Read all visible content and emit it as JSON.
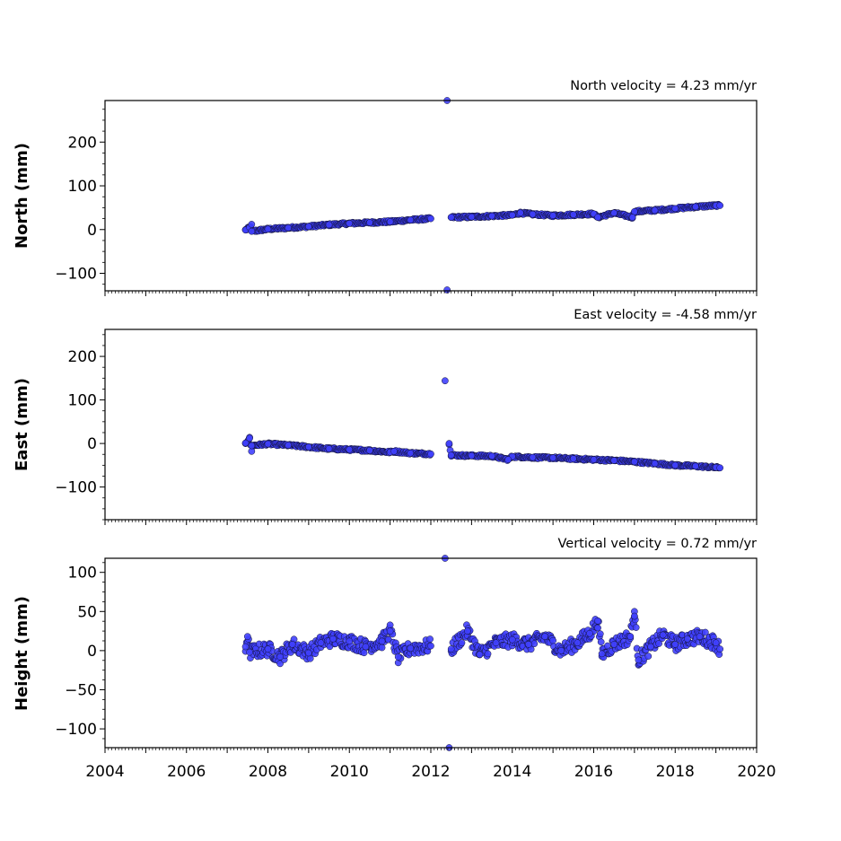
{
  "chart_data": [
    {
      "type": "scatter",
      "title": "North velocity = 4.23 mm/yr",
      "ylabel": "North (mm)",
      "xlim": [
        2004,
        2020
      ],
      "ylim": [
        -140,
        295
      ],
      "yticks": [
        -100,
        0,
        100,
        200
      ],
      "series": [
        {
          "color": "#4040ff",
          "points": [
            [
              2007.45,
              -1
            ],
            [
              2007.55,
              5
            ],
            [
              2007.6,
              12
            ],
            [
              2007.6,
              -4
            ],
            [
              2008.0,
              1
            ],
            [
              2008.5,
              4
            ],
            [
              2009.0,
              7
            ],
            [
              2009.5,
              11
            ],
            [
              2010.0,
              14
            ],
            [
              2010.5,
              16
            ],
            [
              2011.0,
              18
            ],
            [
              2011.5,
              22
            ],
            [
              2012.0,
              25
            ],
            [
              2012.5,
              28
            ],
            [
              2013.0,
              29
            ],
            [
              2013.5,
              31
            ],
            [
              2014.0,
              33
            ],
            [
              2014.5,
              35
            ],
            [
              2015.0,
              32
            ],
            [
              2015.5,
              34
            ],
            [
              2016.0,
              36
            ],
            [
              2016.5,
              38
            ],
            [
              2017.0,
              41
            ],
            [
              2017.5,
              44
            ],
            [
              2018.0,
              48
            ],
            [
              2018.5,
              52
            ],
            [
              2019.0,
              55
            ],
            [
              2019.1,
              55
            ],
            [
              2012.4,
              295
            ],
            [
              2012.4,
              -138
            ],
            [
              2016.1,
              28
            ],
            [
              2016.95,
              28
            ],
            [
              2014.2,
              38
            ]
          ]
        }
      ]
    },
    {
      "type": "scatter",
      "title": "East velocity = -4.58 mm/yr",
      "ylabel": "East (mm)",
      "xlim": [
        2004,
        2020
      ],
      "ylim": [
        -175,
        262
      ],
      "yticks": [
        -100,
        0,
        100,
        200
      ],
      "series": [
        {
          "color": "#4040ff",
          "points": [
            [
              2007.45,
              1
            ],
            [
              2007.55,
              12
            ],
            [
              2007.6,
              -18
            ],
            [
              2007.6,
              -5
            ],
            [
              2008.0,
              -1
            ],
            [
              2008.5,
              -4
            ],
            [
              2009.0,
              -8
            ],
            [
              2009.5,
              -12
            ],
            [
              2010.0,
              -14
            ],
            [
              2010.5,
              -16
            ],
            [
              2011.0,
              -20
            ],
            [
              2011.5,
              -22
            ],
            [
              2012.0,
              -24
            ],
            [
              2012.5,
              -27
            ],
            [
              2013.0,
              -28
            ],
            [
              2013.5,
              -29
            ],
            [
              2014.0,
              -30
            ],
            [
              2014.5,
              -32
            ],
            [
              2015.0,
              -33
            ],
            [
              2015.5,
              -35
            ],
            [
              2016.0,
              -37
            ],
            [
              2016.5,
              -39
            ],
            [
              2017.0,
              -42
            ],
            [
              2017.5,
              -46
            ],
            [
              2018.0,
              -50
            ],
            [
              2018.5,
              -52
            ],
            [
              2019.0,
              -55
            ],
            [
              2019.1,
              -56
            ],
            [
              2012.35,
              144
            ],
            [
              2012.45,
              0
            ],
            [
              2013.9,
              -37
            ],
            [
              2011.1,
              -18
            ]
          ]
        }
      ]
    },
    {
      "type": "scatter",
      "title": "Vertical velocity = 0.72 mm/yr",
      "ylabel": "Height (mm)",
      "xlim": [
        2004,
        2020
      ],
      "ylim": [
        -124,
        118
      ],
      "yticks": [
        -100,
        -50,
        0,
        50,
        100
      ],
      "xticks": [
        2004,
        2006,
        2008,
        2010,
        2012,
        2014,
        2016,
        2018,
        2020
      ],
      "series": [
        {
          "color": "#4040ff",
          "points": [
            [
              2007.45,
              5
            ],
            [
              2007.5,
              18
            ],
            [
              2007.55,
              -2
            ],
            [
              2008.0,
              2
            ],
            [
              2008.3,
              -8
            ],
            [
              2008.6,
              8
            ],
            [
              2009.0,
              -3
            ],
            [
              2009.3,
              10
            ],
            [
              2009.6,
              15
            ],
            [
              2010.0,
              12
            ],
            [
              2010.4,
              5
            ],
            [
              2010.8,
              12
            ],
            [
              2011.0,
              25
            ],
            [
              2011.2,
              -8
            ],
            [
              2011.5,
              3
            ],
            [
              2012.0,
              6
            ],
            [
              2012.5,
              2
            ],
            [
              2012.9,
              25
            ],
            [
              2013.2,
              -5
            ],
            [
              2013.6,
              10
            ],
            [
              2014.0,
              14
            ],
            [
              2014.4,
              8
            ],
            [
              2014.8,
              18
            ],
            [
              2015.2,
              0
            ],
            [
              2015.6,
              10
            ],
            [
              2015.9,
              22
            ],
            [
              2016.1,
              38
            ],
            [
              2016.2,
              -4
            ],
            [
              2016.5,
              8
            ],
            [
              2016.9,
              18
            ],
            [
              2017.0,
              50
            ],
            [
              2017.0,
              44
            ],
            [
              2017.1,
              -12
            ],
            [
              2017.4,
              5
            ],
            [
              2017.7,
              20
            ],
            [
              2018.0,
              8
            ],
            [
              2018.3,
              15
            ],
            [
              2018.6,
              18
            ],
            [
              2019.0,
              10
            ],
            [
              2019.1,
              2
            ],
            [
              2012.35,
              118
            ],
            [
              2012.45,
              -124
            ]
          ]
        }
      ]
    }
  ]
}
